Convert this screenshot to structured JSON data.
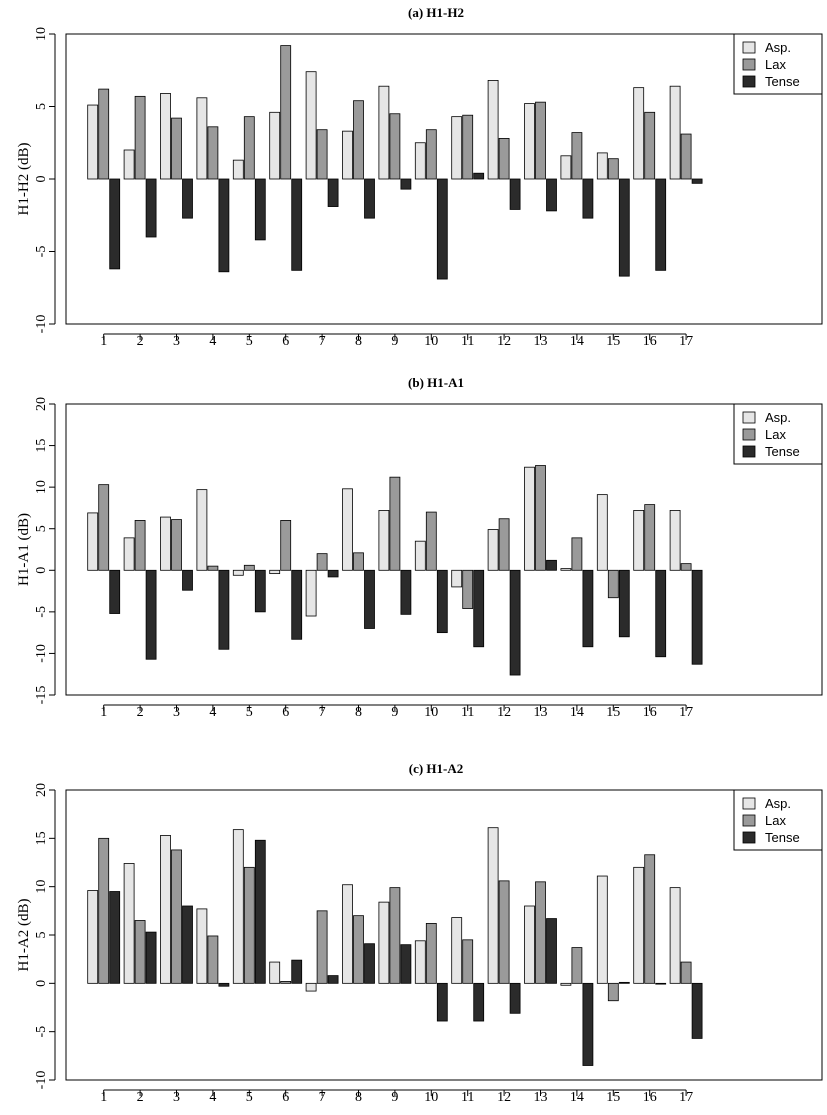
{
  "chart_data": [
    {
      "type": "bar",
      "title": "(a) H1-H2",
      "xlabel": "",
      "ylabel": "H1-H2 (dB)",
      "ylim": [
        -10,
        10
      ],
      "yticks": [
        "-10",
        "-5",
        "0",
        "5",
        "10"
      ],
      "categories": [
        "1",
        "2",
        "3",
        "4",
        "5",
        "6",
        "7",
        "8",
        "9",
        "10",
        "11",
        "12",
        "13",
        "14",
        "15",
        "16",
        "17"
      ],
      "legend_position": "top-right",
      "series": [
        {
          "name": "Asp.",
          "color": "#e6e6e6",
          "values": [
            5.1,
            2.0,
            5.9,
            5.6,
            1.3,
            4.6,
            7.4,
            3.3,
            6.4,
            2.5,
            4.3,
            6.8,
            5.2,
            1.6,
            1.8,
            6.3,
            6.4
          ]
        },
        {
          "name": "Lax",
          "color": "#9a9a9a",
          "values": [
            6.2,
            5.7,
            4.2,
            3.6,
            4.3,
            9.2,
            3.4,
            5.4,
            4.5,
            3.4,
            4.4,
            2.8,
            5.3,
            3.2,
            1.4,
            4.6,
            3.1
          ]
        },
        {
          "name": "Tense",
          "color": "#2b2b2b",
          "values": [
            -6.2,
            -4.0,
            -2.7,
            -6.4,
            -4.2,
            -6.3,
            -1.9,
            -2.7,
            -0.7,
            -6.9,
            0.4,
            -2.1,
            -2.2,
            -2.7,
            -6.7,
            -6.3,
            -0.3
          ]
        }
      ]
    },
    {
      "type": "bar",
      "title": "(b) H1-A1",
      "xlabel": "",
      "ylabel": "H1-A1 (dB)",
      "ylim": [
        -15,
        20
      ],
      "yticks": [
        "-15",
        "-10",
        "-5",
        "0",
        "5",
        "10",
        "15",
        "20"
      ],
      "categories": [
        "1",
        "2",
        "3",
        "4",
        "5",
        "6",
        "7",
        "8",
        "9",
        "10",
        "11",
        "12",
        "13",
        "14",
        "15",
        "16",
        "17"
      ],
      "legend_position": "top-right",
      "series": [
        {
          "name": "Asp.",
          "color": "#e6e6e6",
          "values": [
            6.9,
            3.9,
            6.4,
            9.7,
            -0.6,
            -0.4,
            -5.5,
            9.8,
            7.2,
            3.5,
            -2.0,
            4.9,
            12.4,
            0.2,
            9.1,
            7.2,
            7.2
          ]
        },
        {
          "name": "Lax",
          "color": "#9a9a9a",
          "values": [
            10.3,
            6.0,
            6.1,
            0.5,
            0.6,
            6.0,
            2.0,
            2.1,
            11.2,
            7.0,
            -4.6,
            6.2,
            12.6,
            3.9,
            -3.3,
            7.9,
            0.8
          ]
        },
        {
          "name": "Tense",
          "color": "#2b2b2b",
          "values": [
            -5.2,
            -10.7,
            -2.4,
            -9.5,
            -5.0,
            -8.3,
            -0.8,
            -7.0,
            -5.3,
            -7.5,
            -9.2,
            -12.6,
            1.2,
            -9.2,
            -8.0,
            -10.4,
            -11.3
          ]
        }
      ]
    },
    {
      "type": "bar",
      "title": "(c) H1-A2",
      "xlabel": "",
      "ylabel": "H1-A2 (dB)",
      "ylim": [
        -10,
        20
      ],
      "yticks": [
        "-10",
        "-5",
        "0",
        "5",
        "10",
        "15",
        "20"
      ],
      "categories": [
        "1",
        "2",
        "3",
        "4",
        "5",
        "6",
        "7",
        "8",
        "9",
        "10",
        "11",
        "12",
        "13",
        "14",
        "15",
        "16",
        "17"
      ],
      "legend_position": "top-right",
      "series": [
        {
          "name": "Asp.",
          "color": "#e6e6e6",
          "values": [
            9.6,
            12.4,
            15.3,
            7.7,
            15.9,
            2.2,
            -0.8,
            10.2,
            8.4,
            4.4,
            6.8,
            16.1,
            8.0,
            -0.2,
            11.1,
            12.0,
            9.9
          ]
        },
        {
          "name": "Lax",
          "color": "#9a9a9a",
          "values": [
            15.0,
            6.5,
            13.8,
            4.9,
            12.0,
            0.2,
            7.5,
            7.0,
            9.9,
            6.2,
            4.5,
            10.6,
            10.5,
            3.7,
            -1.8,
            13.3,
            2.2
          ]
        },
        {
          "name": "Tense",
          "color": "#2b2b2b",
          "values": [
            9.5,
            5.3,
            8.0,
            -0.3,
            14.8,
            2.4,
            0.8,
            4.1,
            4.0,
            -3.9,
            -3.9,
            -3.1,
            6.7,
            -8.5,
            0.1,
            0.0,
            -5.7
          ]
        }
      ]
    }
  ]
}
